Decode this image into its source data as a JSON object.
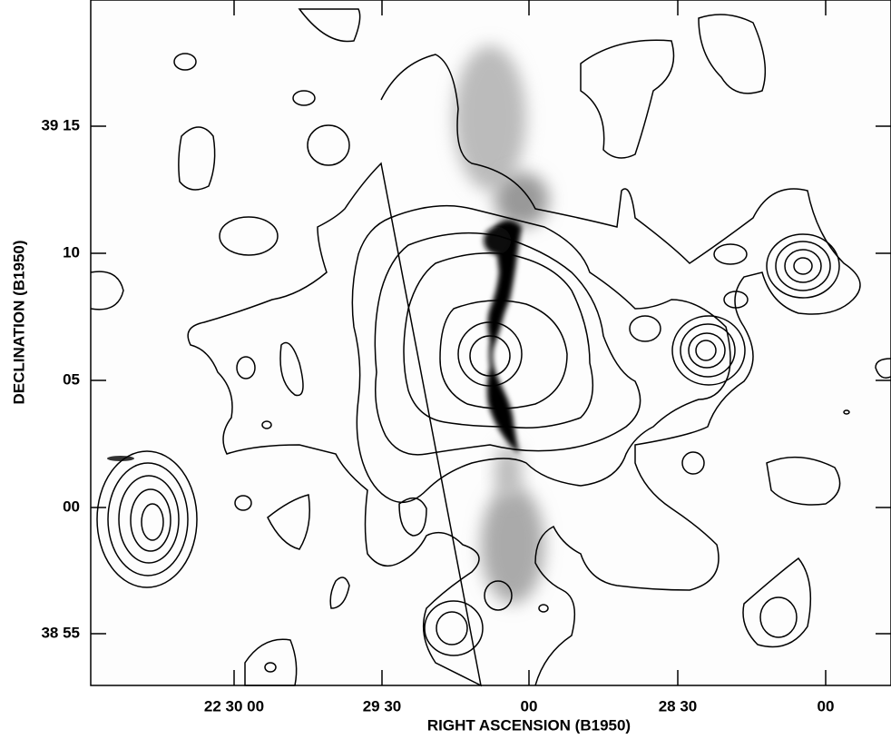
{
  "axes": {
    "x_label": "RIGHT ASCENSION (B1950)",
    "y_label": "DECLINATION (B1950)",
    "x_ticks": [
      "22 30 00",
      "29 30",
      "00",
      "28 30",
      "00"
    ],
    "y_ticks": [
      "39 15",
      "10",
      "05",
      "00",
      "38 55"
    ]
  }
}
